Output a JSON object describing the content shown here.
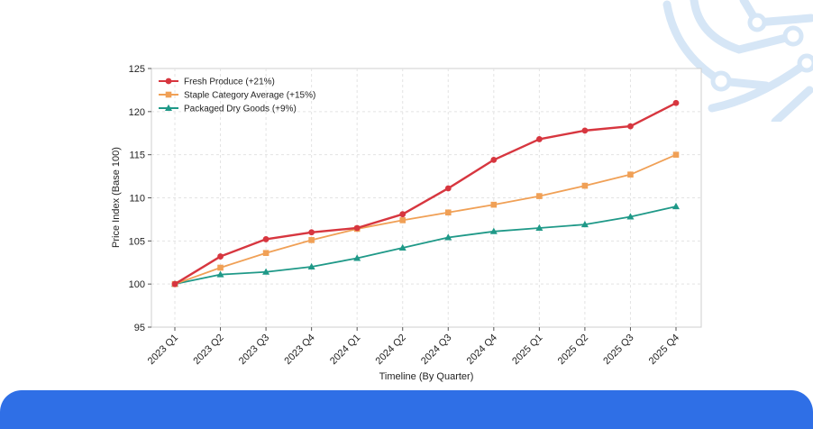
{
  "chart_data": {
    "type": "line",
    "categories": [
      "2023 Q1",
      "2023 Q2",
      "2023 Q3",
      "2023 Q4",
      "2024 Q1",
      "2024 Q2",
      "2024 Q3",
      "2024 Q4",
      "2025 Q1",
      "2025 Q2",
      "2025 Q3",
      "2025 Q4"
    ],
    "series": [
      {
        "name": "Fresh Produce (+21%)",
        "color": "#d7363f",
        "marker": "circle",
        "values": [
          100.0,
          103.2,
          105.2,
          106.0,
          106.5,
          108.1,
          111.1,
          114.4,
          116.8,
          117.8,
          118.3,
          121.0
        ]
      },
      {
        "name": "Staple Category Average (+15%)",
        "color": "#f0a056",
        "marker": "square",
        "values": [
          100.0,
          101.9,
          103.6,
          105.1,
          106.4,
          107.4,
          108.3,
          109.2,
          110.2,
          111.4,
          112.7,
          115.0
        ]
      },
      {
        "name": "Packaged Dry Goods (+9%)",
        "color": "#1f9988",
        "marker": "triangle",
        "values": [
          100.0,
          101.1,
          101.4,
          102.0,
          103.0,
          104.2,
          105.4,
          106.1,
          106.5,
          106.9,
          107.8,
          109.0
        ]
      }
    ],
    "xlabel": "Timeline (By Quarter)",
    "ylabel": "Price Index (Base 100)",
    "ylim": [
      95,
      125
    ],
    "yticks": [
      95,
      100,
      105,
      110,
      115,
      120,
      125
    ],
    "grid": true,
    "legend_position": "top-left"
  },
  "decoration": {
    "icon": "circuit-pattern-icon",
    "accent_color": "#2f6fe6"
  }
}
